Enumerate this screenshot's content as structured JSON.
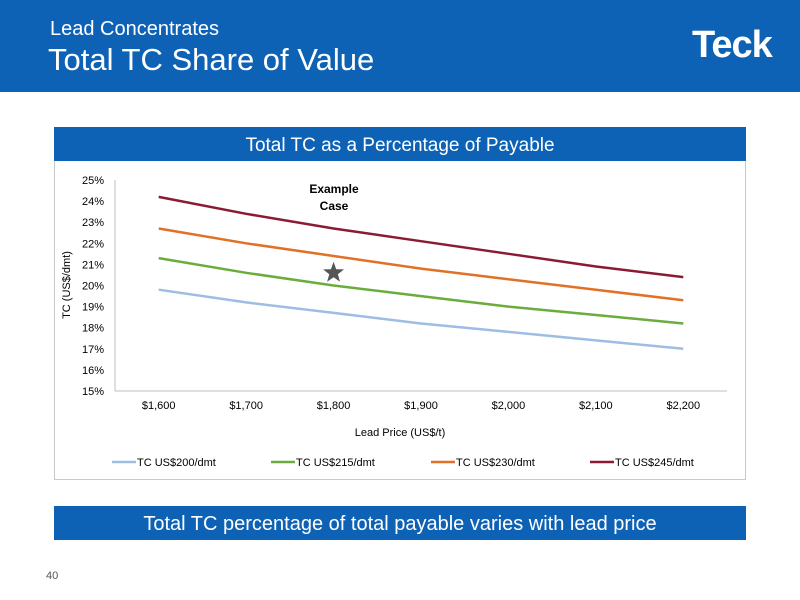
{
  "slide": {
    "subtitle": "Lead Concentrates",
    "title": "Total TC Share of Value",
    "logo": "Teck",
    "page_number": "40",
    "footer_banner": "Total TC percentage of total payable varies with lead price"
  },
  "chart_data": {
    "type": "line",
    "title": "Total TC as a Percentage of Payable",
    "xlabel": "Lead Price (US$/t)",
    "ylabel": "TC (US$/dmt)",
    "categories": [
      "$1,600",
      "$1,700",
      "$1,800",
      "$1,900",
      "$2,000",
      "$2,100",
      "$2,200"
    ],
    "x": [
      1600,
      1700,
      1800,
      1900,
      2000,
      2100,
      2200
    ],
    "ylim": [
      15,
      25
    ],
    "yticks": [
      "15%",
      "16%",
      "17%",
      "18%",
      "19%",
      "20%",
      "21%",
      "22%",
      "23%",
      "24%",
      "25%"
    ],
    "legend_position": "bottom",
    "grid": false,
    "series": [
      {
        "name": "TC US$200/dmt",
        "color": "#9dbde2",
        "values": [
          19.8,
          19.2,
          18.7,
          18.2,
          17.8,
          17.4,
          17.0
        ]
      },
      {
        "name": "TC US$215/dmt",
        "color": "#6aad3d",
        "values": [
          21.3,
          20.6,
          20.0,
          19.5,
          19.0,
          18.6,
          18.2
        ]
      },
      {
        "name": "TC US$230/dmt",
        "color": "#e07126",
        "values": [
          22.7,
          22.0,
          21.4,
          20.8,
          20.3,
          19.8,
          19.3
        ]
      },
      {
        "name": "TC US$245/dmt",
        "color": "#8b1a33",
        "values": [
          24.2,
          23.4,
          22.7,
          22.1,
          21.5,
          20.9,
          20.4
        ]
      }
    ],
    "annotation": {
      "line1": "Example",
      "line2": "Case",
      "marker_x": 1800,
      "marker_y": 20.6,
      "marker_color": "#555555"
    }
  }
}
